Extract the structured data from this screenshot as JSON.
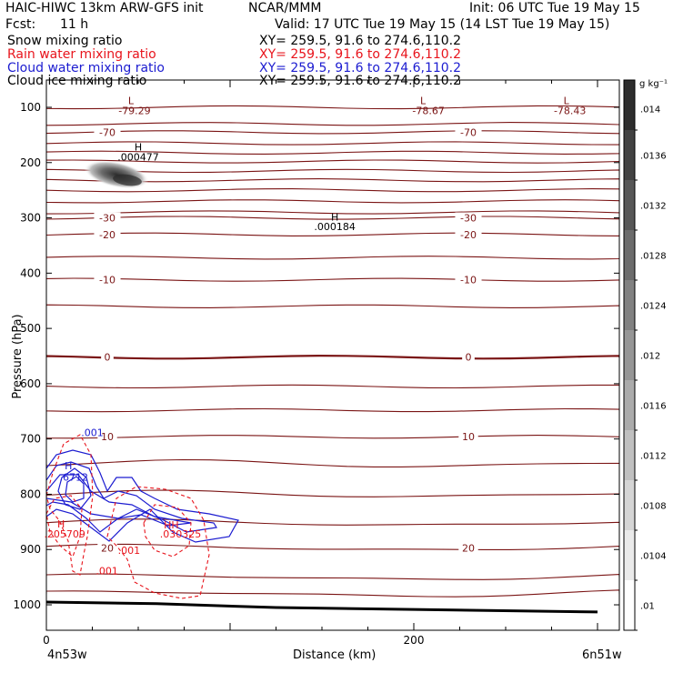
{
  "header": {
    "model": "HAIC-HIWC 13km ARW-GFS init",
    "org": "NCAR/MMM",
    "init": "Init: 06 UTC Tue 19 May 15",
    "fcst_label": "Fcst:",
    "fcst_value": "11 h",
    "valid": "Valid: 17 UTC Tue 19 May 15 (14 LST Tue 19 May 15)"
  },
  "legend": [
    {
      "name": "Snow mixing ratio",
      "xy": "XY= 259.5, 91.6 to 274.6,110.2",
      "color": "#000000"
    },
    {
      "name": "Rain water mixing ratio",
      "xy": "XY= 259.5, 91.6 to 274.6,110.2",
      "color": "#e8141c"
    },
    {
      "name": "Cloud water mixing ratio",
      "xy": "XY= 259.5, 91.6 to 274.6,110.2",
      "color": "#1c1cd0"
    },
    {
      "name": "Cloud ice mixing ratio",
      "xy": "XY= 259.5, 91.6 to 274.6,110.2",
      "color": "#000000"
    }
  ],
  "chart_data": {
    "type": "cross-section",
    "xlabel": "Distance (km)",
    "ylabel": "Pressure (hPa)",
    "xlim": [
      0,
      300
    ],
    "ylim": [
      1050,
      50
    ],
    "x_ticks": [
      0,
      200
    ],
    "y_ticks": [
      100,
      200,
      300,
      400,
      500,
      600,
      700,
      800,
      900,
      1000
    ],
    "x_endpoints": [
      "4n53w",
      "6n51w"
    ],
    "colorbar": {
      "unit": "g kg⁻¹",
      "labels": [
        ".014",
        ".0136",
        ".0132",
        ".0128",
        ".0124",
        ".012",
        ".0116",
        ".0112",
        ".0108",
        ".0104",
        ".01"
      ]
    },
    "temperature_contours_color": "#7a1414",
    "temperature_contours": [
      {
        "p": 100,
        "label": ""
      },
      {
        "p": 130,
        "label": ""
      },
      {
        "p": 145,
        "label": "-70"
      },
      {
        "p": 165,
        "label": ""
      },
      {
        "p": 182,
        "label": ""
      },
      {
        "p": 198,
        "label": ""
      },
      {
        "p": 215,
        "label": ""
      },
      {
        "p": 232,
        "label": ""
      },
      {
        "p": 250,
        "label": ""
      },
      {
        "p": 270,
        "label": ""
      },
      {
        "p": 290,
        "label": ""
      },
      {
        "p": 300,
        "label": "-30"
      },
      {
        "p": 330,
        "label": "-20"
      },
      {
        "p": 372,
        "label": ""
      },
      {
        "p": 412,
        "label": "-10"
      },
      {
        "p": 460,
        "label": ""
      },
      {
        "p": 552,
        "label": "0"
      },
      {
        "p": 605,
        "label": ""
      },
      {
        "p": 648,
        "label": ""
      },
      {
        "p": 696,
        "label": "10"
      },
      {
        "p": 745,
        "label": ""
      },
      {
        "p": 800,
        "label": ""
      },
      {
        "p": 852,
        "label": ""
      },
      {
        "p": 897,
        "label": "20"
      },
      {
        "p": 950,
        "label": ""
      },
      {
        "p": 980,
        "label": ""
      }
    ],
    "surface_pressure": [
      [
        0,
        995
      ],
      [
        60,
        998
      ],
      [
        125,
        1005
      ],
      [
        300,
        1013
      ]
    ],
    "annotations": [
      {
        "x": 46,
        "p": 94,
        "text": "L",
        "color": "#7a1414"
      },
      {
        "x": 48,
        "p": 112,
        "text": "-79.29",
        "color": "#7a1414"
      },
      {
        "x": 205,
        "p": 94,
        "text": "L",
        "color": "#7a1414"
      },
      {
        "x": 208,
        "p": 112,
        "text": "-78.67",
        "color": "#7a1414"
      },
      {
        "x": 283,
        "p": 94,
        "text": "L",
        "color": "#7a1414"
      },
      {
        "x": 285,
        "p": 112,
        "text": "-78.43",
        "color": "#7a1414"
      },
      {
        "x": 50,
        "p": 178,
        "text": "H",
        "color": "#000000"
      },
      {
        "x": 50,
        "p": 196,
        "text": ".000477",
        "color": "#000000"
      },
      {
        "x": 157,
        "p": 305,
        "text": "H",
        "color": "#000000"
      },
      {
        "x": 157,
        "p": 322,
        "text": ".000184",
        "color": "#000000"
      },
      {
        "x": 25,
        "p": 695,
        "text": ".001",
        "color": "#1c1cd0"
      },
      {
        "x": 12,
        "p": 755,
        "text": "H",
        "color": "#1c1cd0"
      },
      {
        "x": 15,
        "p": 775,
        "text": ".6712",
        "color": "#1c1cd0"
      },
      {
        "x": 8,
        "p": 860,
        "text": "H",
        "color": "#e8141c"
      },
      {
        "x": 10,
        "p": 878,
        "text": ".205709",
        "color": "#e8141c"
      },
      {
        "x": 68,
        "p": 862,
        "text": "HH",
        "color": "#e8141c"
      },
      {
        "x": 73,
        "p": 878,
        "text": ".030325",
        "color": "#e8141c"
      },
      {
        "x": 45,
        "p": 908,
        "text": ".001",
        "color": "#e8141c"
      },
      {
        "x": 33,
        "p": 945,
        "text": ".001",
        "color": "#e8141c"
      }
    ]
  }
}
